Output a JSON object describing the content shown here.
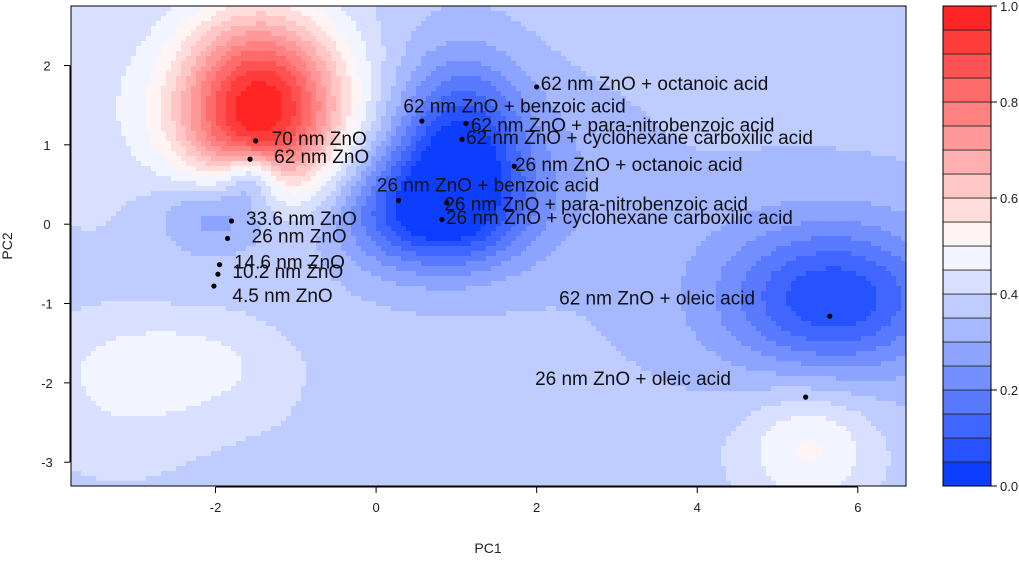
{
  "chart_data": {
    "type": "contour-scatter",
    "xlabel": "PC1",
    "ylabel": "PC2",
    "xlim": [
      -3.8,
      6.6
    ],
    "ylim": [
      -3.3,
      2.75
    ],
    "xticks": [
      "-2",
      "0",
      "2",
      "4",
      "6"
    ],
    "xtick_values": [
      -2,
      0,
      2,
      4,
      6
    ],
    "yticks": [
      "2",
      "1",
      "0",
      "-1",
      "-2",
      "-3"
    ],
    "ytick_values": [
      2,
      1,
      0,
      -1,
      -2,
      -3
    ],
    "colorbar": {
      "range": [
        0.0,
        1.0
      ],
      "levels": 20,
      "ticks": [
        "1.0",
        "0.8",
        "0.6",
        "0.4",
        "0.2",
        "0.0"
      ],
      "tick_values": [
        1.0,
        0.8,
        0.6,
        0.4,
        0.2,
        0.0
      ],
      "low_color": "#0033ff",
      "mid_color": "#ffffff",
      "high_color": "#ff1a1a"
    },
    "points": [
      {
        "label": "70 nm ZnO",
        "x": -1.5,
        "y": 1.05,
        "lx": 0.2,
        "ly": -0.05
      },
      {
        "label": "62 nm ZnO",
        "x": -1.57,
        "y": 0.82,
        "lx": 0.3,
        "ly": -0.05
      },
      {
        "label": "33.6 nm ZnO",
        "x": -1.8,
        "y": 0.04,
        "lx": 0.18,
        "ly": -0.05
      },
      {
        "label": "26 nm ZnO",
        "x": -1.85,
        "y": -0.18,
        "lx": 0.3,
        "ly": -0.05
      },
      {
        "label": "14.6 nm ZnO",
        "x": -1.95,
        "y": -0.51,
        "lx": 0.18,
        "ly": -0.05
      },
      {
        "label": "10.2 nm ZnO",
        "x": -1.97,
        "y": -0.63,
        "lx": 0.18,
        "ly": -0.05
      },
      {
        "label": "4.5 nm ZnO",
        "x": -2.02,
        "y": -0.78,
        "lx": 0.23,
        "ly": -0.2
      },
      {
        "label": "62 nm ZnO + octanoic acid",
        "x": 2.0,
        "y": 1.73,
        "lx": 0.05,
        "ly": -0.04
      },
      {
        "label": "62 nm ZnO + benzoic acid",
        "x": 0.57,
        "y": 1.3,
        "lx": -0.23,
        "ly": 0.11
      },
      {
        "label": "62 nm ZnO + para-nitrobenzoic acid",
        "x": 1.12,
        "y": 1.27,
        "lx": 0.06,
        "ly": -0.1
      },
      {
        "label": "62 nm ZnO + cyclohexane carboxilic acid",
        "x": 1.07,
        "y": 1.07,
        "lx": 0.05,
        "ly": -0.06
      },
      {
        "label": "26 nm ZnO + octanoic acid",
        "x": 1.72,
        "y": 0.73,
        "lx": 0.01,
        "ly": -0.06
      },
      {
        "label": "26 nm ZnO + benzoic acid",
        "x": 0.28,
        "y": 0.3,
        "lx": -0.27,
        "ly": 0.11
      },
      {
        "label": "26 nm ZnO + para-nitrobenzoic acid",
        "x": 0.88,
        "y": 0.27,
        "lx": -0.03,
        "ly": -0.1
      },
      {
        "label": "26 nm ZnO + cyclohexane carboxilic acid",
        "x": 0.82,
        "y": 0.06,
        "lx": 0.05,
        "ly": -0.06
      },
      {
        "label": "62 nm ZnO + oleic acid",
        "x": 5.65,
        "y": -1.16,
        "lx": -3.37,
        "ly": 0.15
      },
      {
        "label": "26 nm ZnO + oleic acid",
        "x": 5.35,
        "y": -2.18,
        "lx": -3.37,
        "ly": 0.15
      }
    ],
    "surface": {
      "base": 0.37,
      "bumps": [
        {
          "x": -1.45,
          "y": 1.45,
          "amp": 0.63,
          "sx": 0.75,
          "sy": 0.85
        },
        {
          "x": -1.55,
          "y": 0.62,
          "amp": -0.22,
          "sx": 0.25,
          "sy": 0.22
        },
        {
          "x": -1.85,
          "y": 0.18,
          "amp": -0.22,
          "sx": 0.55,
          "sy": 0.38
        },
        {
          "x": 1.05,
          "y": 1.05,
          "amp": -0.28,
          "sx": 0.55,
          "sy": 0.75
        },
        {
          "x": 0.75,
          "y": 0.1,
          "amp": -0.25,
          "sx": 0.85,
          "sy": 0.5
        },
        {
          "x": 0.3,
          "y": 0.4,
          "amp": -0.08,
          "sx": 0.7,
          "sy": 0.6
        },
        {
          "x": 1.9,
          "y": 0.9,
          "amp": -0.06,
          "sx": 0.9,
          "sy": 0.7
        },
        {
          "x": 5.7,
          "y": -0.95,
          "amp": -0.28,
          "sx": 0.95,
          "sy": 0.65
        },
        {
          "x": 5.0,
          "y": -0.6,
          "amp": -0.04,
          "sx": 2.0,
          "sy": 1.2
        },
        {
          "x": -2.6,
          "y": -1.8,
          "amp": 0.12,
          "sx": 1.0,
          "sy": 0.45
        },
        {
          "x": -3.3,
          "y": -2.7,
          "amp": 0.04,
          "sx": 0.7,
          "sy": 0.5
        },
        {
          "x": 5.4,
          "y": -2.8,
          "amp": 0.14,
          "sx": 0.6,
          "sy": 0.55
        },
        {
          "x": 0.7,
          "y": -2.9,
          "amp": 0.03,
          "sx": 2.5,
          "sy": 0.5
        },
        {
          "x": -3.6,
          "y": 1.5,
          "amp": 0.05,
          "sx": 0.6,
          "sy": 1.5
        }
      ]
    }
  }
}
